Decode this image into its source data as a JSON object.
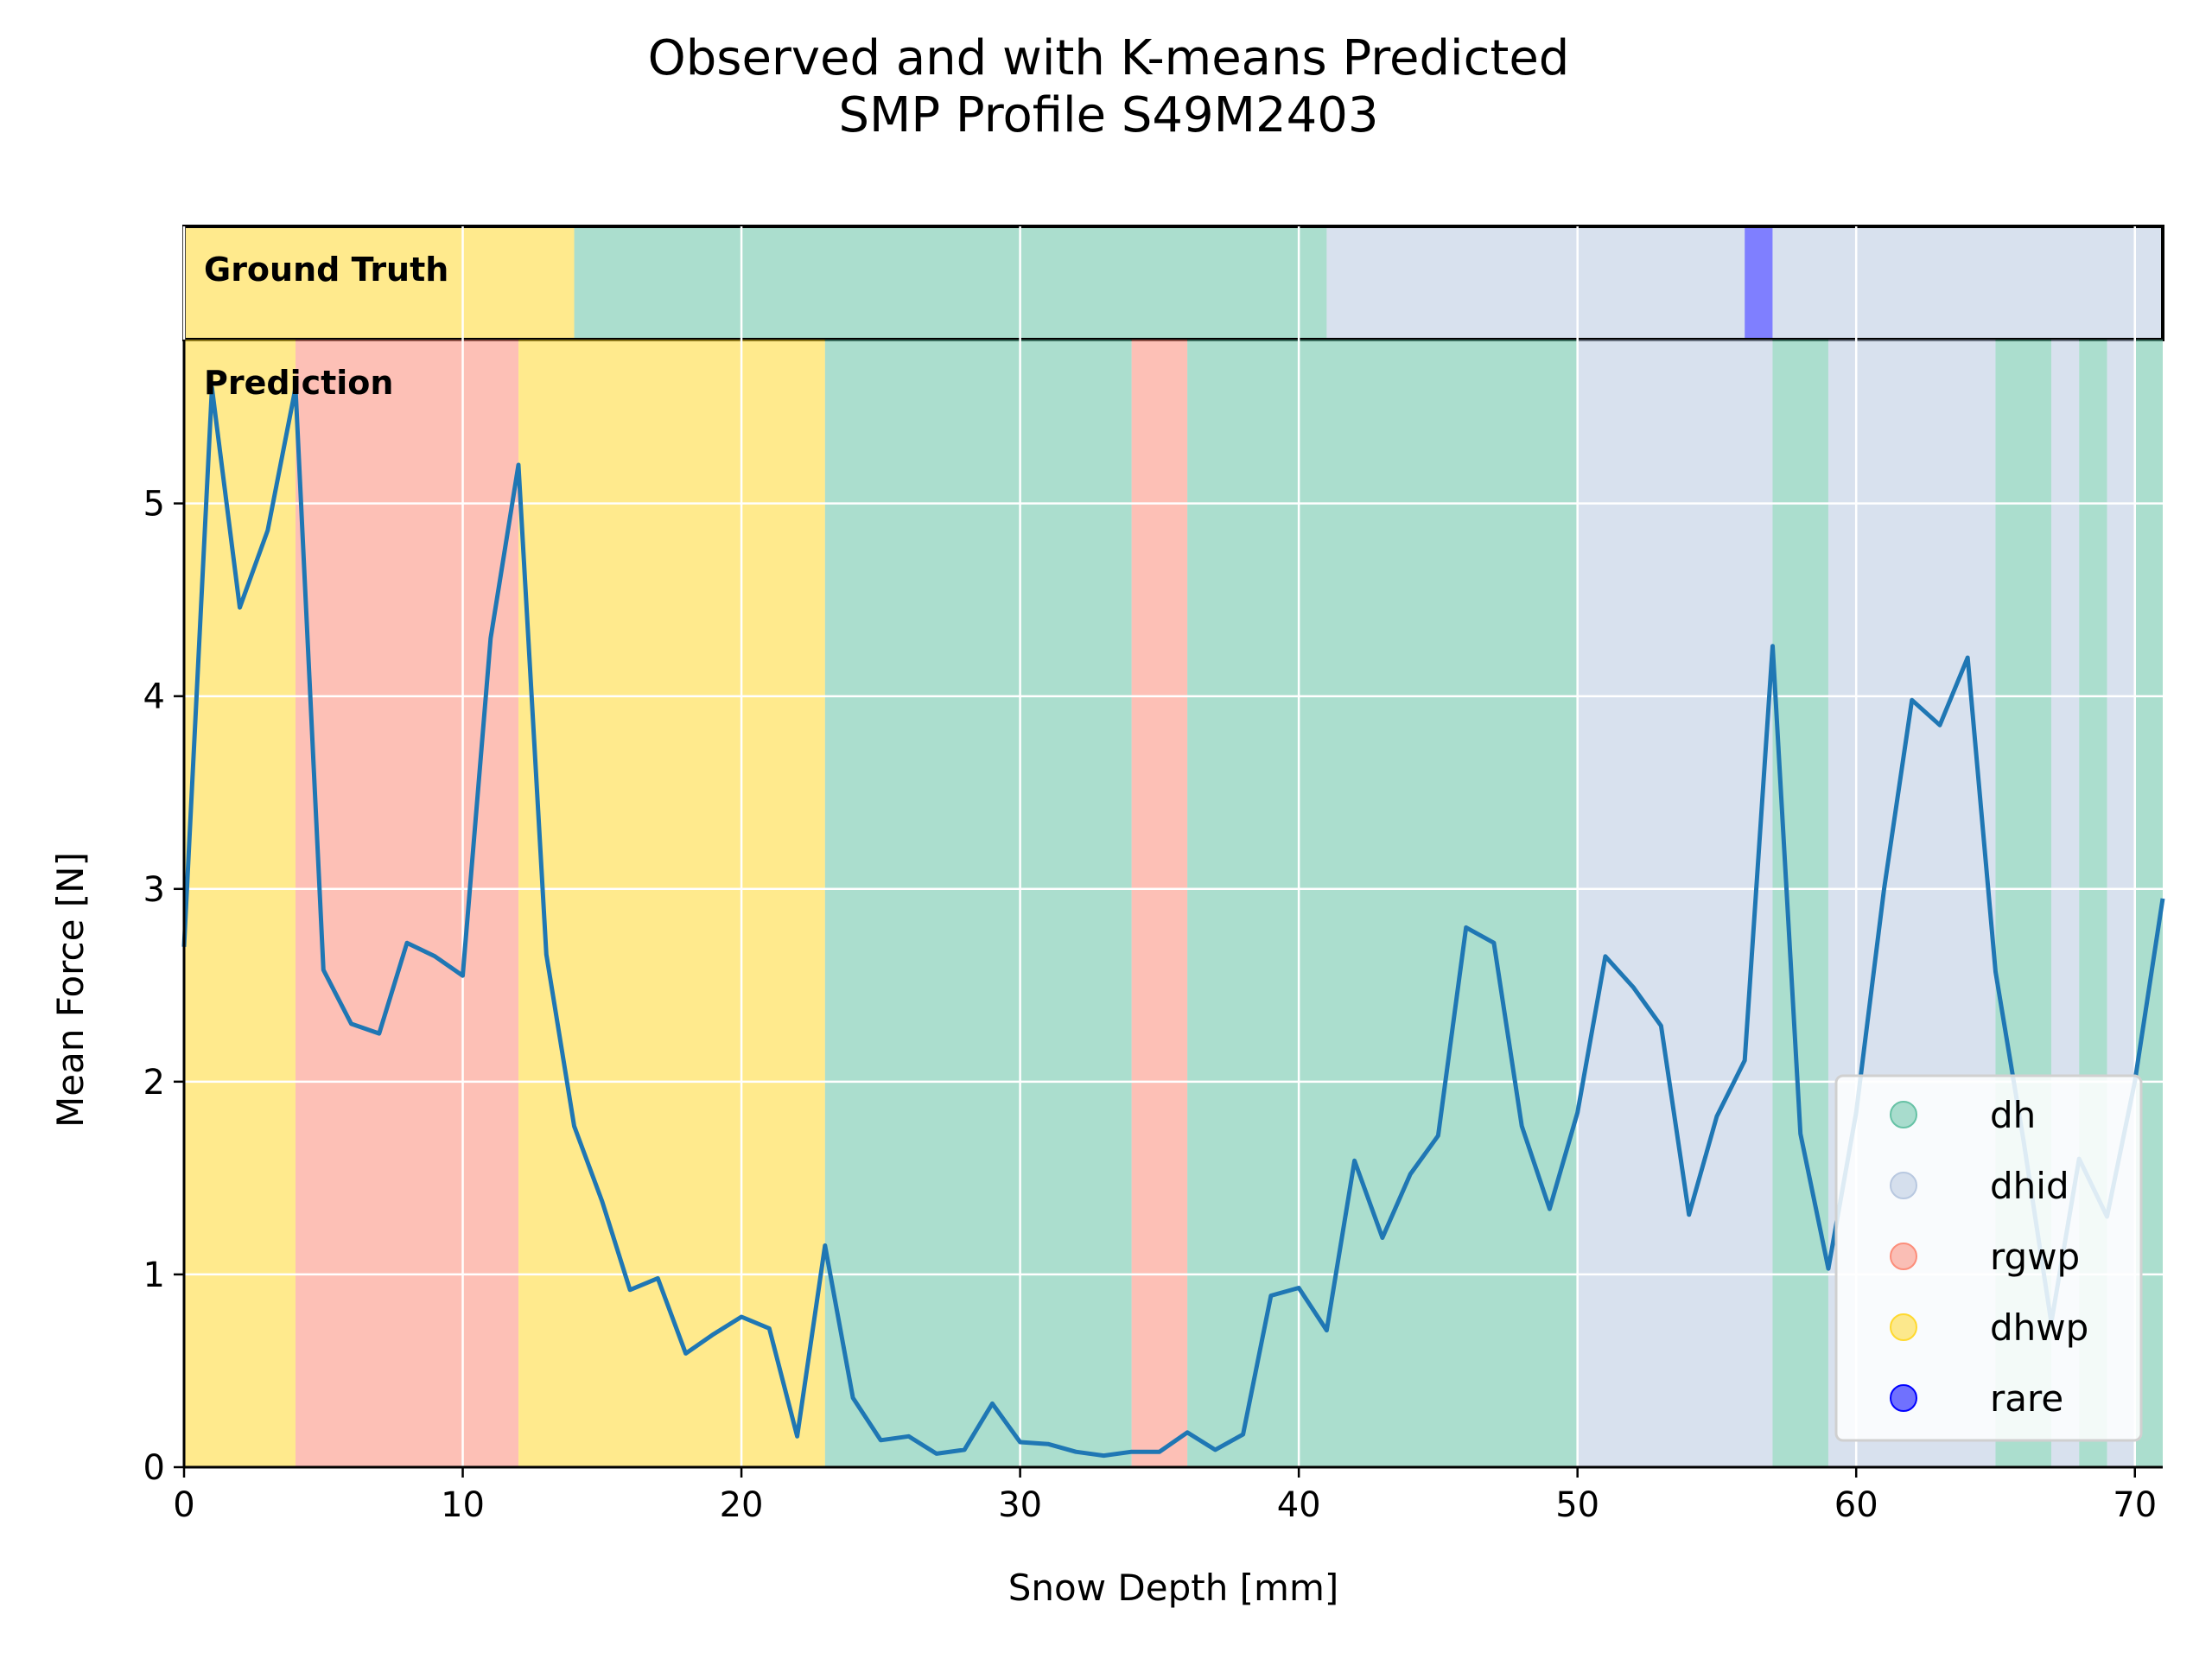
{
  "chart_data": {
    "type": "line",
    "title": "Observed and with K-means Predicted\nSMP Profile S49M2403",
    "xlabel": "Snow Depth [mm]",
    "ylabel": "Mean Force [N]",
    "xlim": [
      0,
      71
    ],
    "ylim": [
      0,
      5.85
    ],
    "xticks": [
      0,
      10,
      20,
      30,
      40,
      50,
      60,
      70
    ],
    "yticks": [
      0,
      1,
      2,
      3,
      4,
      5
    ],
    "grid": true,
    "legend_position": "lower-right",
    "panel_labels": {
      "ground_truth": "Ground Truth",
      "prediction": "Prediction"
    },
    "classes": [
      {
        "name": "dh",
        "color": "#66c2a5"
      },
      {
        "name": "dhid",
        "color": "#b8c8e0"
      },
      {
        "name": "rgwp",
        "color": "#fc8d7a"
      },
      {
        "name": "dhwp",
        "color": "#ffd92f"
      },
      {
        "name": "rare",
        "color": "#0000ff"
      }
    ],
    "ground_truth_segments": [
      {
        "start": 0,
        "end": 14,
        "class": "dhwp"
      },
      {
        "start": 14,
        "end": 41,
        "class": "dh"
      },
      {
        "start": 41,
        "end": 56,
        "class": "dhid"
      },
      {
        "start": 56,
        "end": 57,
        "class": "rare"
      },
      {
        "start": 57,
        "end": 71,
        "class": "dhid"
      }
    ],
    "prediction_segments": [
      {
        "start": 0,
        "end": 4,
        "class": "dhwp"
      },
      {
        "start": 4,
        "end": 12,
        "class": "rgwp"
      },
      {
        "start": 12,
        "end": 23,
        "class": "dhwp"
      },
      {
        "start": 23,
        "end": 34,
        "class": "dh"
      },
      {
        "start": 34,
        "end": 36,
        "class": "rgwp"
      },
      {
        "start": 36,
        "end": 50,
        "class": "dh"
      },
      {
        "start": 50,
        "end": 57,
        "class": "dhid"
      },
      {
        "start": 57,
        "end": 59,
        "class": "dh"
      },
      {
        "start": 59,
        "end": 65,
        "class": "dhid"
      },
      {
        "start": 65,
        "end": 67,
        "class": "dh"
      },
      {
        "start": 67,
        "end": 68,
        "class": "dhid"
      },
      {
        "start": 68,
        "end": 69,
        "class": "dh"
      },
      {
        "start": 69,
        "end": 70,
        "class": "dhid"
      },
      {
        "start": 70,
        "end": 71,
        "class": "dh"
      }
    ],
    "series": [
      {
        "color": "#1f77b4",
        "x": [
          0,
          1,
          2,
          3,
          4,
          5,
          6,
          7,
          8,
          9,
          10,
          11,
          12,
          13,
          14,
          15,
          16,
          17,
          18,
          19,
          20,
          21,
          22,
          23,
          24,
          25,
          26,
          27,
          28,
          29,
          30,
          31,
          32,
          33,
          34,
          35,
          36,
          37,
          38,
          39,
          40,
          41,
          42,
          43,
          44,
          45,
          46,
          47,
          48,
          49,
          50,
          51,
          52,
          53,
          54,
          55,
          56,
          57,
          58,
          59,
          60,
          61,
          62,
          63,
          64,
          65,
          66,
          67,
          68,
          69,
          70,
          71
        ],
        "y": [
          2.7,
          5.6,
          4.46,
          4.86,
          5.6,
          2.58,
          2.3,
          2.25,
          2.72,
          2.65,
          2.55,
          4.3,
          5.2,
          2.66,
          1.77,
          1.38,
          0.92,
          0.98,
          0.59,
          0.69,
          0.78,
          0.72,
          0.16,
          1.15,
          0.36,
          0.14,
          0.16,
          0.07,
          0.09,
          0.33,
          0.13,
          0.12,
          0.08,
          0.06,
          0.08,
          0.08,
          0.18,
          0.09,
          0.17,
          0.89,
          0.93,
          0.71,
          1.59,
          1.19,
          1.52,
          1.72,
          2.8,
          2.72,
          1.77,
          1.34,
          1.84,
          2.65,
          2.49,
          2.29,
          1.31,
          1.82,
          2.11,
          4.26,
          1.73,
          1.03,
          1.84,
          3.0,
          3.98,
          3.85,
          4.2,
          2.57,
          1.7,
          0.75,
          1.6,
          1.3,
          2.0,
          2.95
        ]
      }
    ]
  }
}
